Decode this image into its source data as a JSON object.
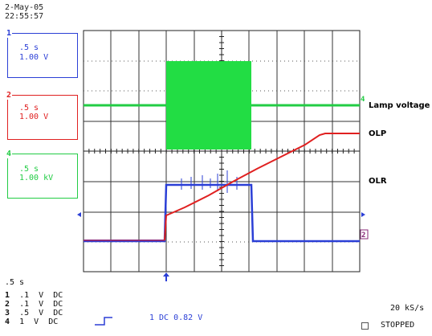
{
  "header": {
    "date": "2-May-05",
    "time": "22:55:57"
  },
  "channels": [
    {
      "number": "1",
      "timebase": ".5 s",
      "scale": "1.00 V",
      "color": "#2b3fd6"
    },
    {
      "number": "2",
      "timebase": ".5 s",
      "scale": "1.00 V",
      "color": "#e02020"
    },
    {
      "number": "4",
      "timebase": ".5 s",
      "scale": "1.00 kV",
      "color": "#22cc44"
    }
  ],
  "trace_labels": {
    "lamp": "Lamp voltage",
    "olp": "OLP",
    "olr": "OLR"
  },
  "markers": {
    "ch4_level": "4",
    "ch2_level": "2"
  },
  "bottom": {
    "timebase": ".5 s",
    "rows": [
      {
        "n": "1",
        "v": ".1",
        "u": "V",
        "cpl": "DC"
      },
      {
        "n": "2",
        "v": ".1",
        "u": "V",
        "cpl": "DC"
      },
      {
        "n": "3",
        "v": ".5",
        "u": "V",
        "cpl": "DC"
      },
      {
        "n": "4",
        "v": "1",
        "u": "V",
        "cpl": "DC"
      }
    ],
    "trigger": "1 DC 0.82 V",
    "sample_rate": "20 kS/s",
    "status": "STOPPED"
  }
}
